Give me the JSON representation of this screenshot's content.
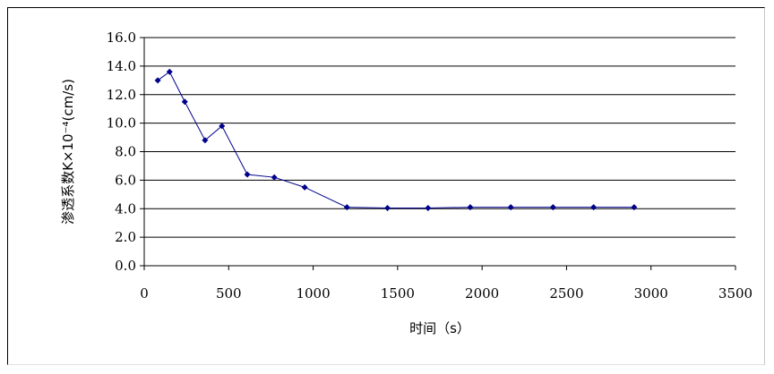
{
  "chart_data": {
    "type": "line",
    "title": "",
    "xlabel": "时间（s）",
    "ylabel": "渗透系数K×10⁻⁴(cm/s)",
    "xlim": [
      0,
      3500
    ],
    "ylim": [
      0,
      16
    ],
    "xticks": [
      0,
      500,
      1000,
      1500,
      2000,
      2500,
      3000,
      3500
    ],
    "yticks": [
      0,
      2,
      4,
      6,
      8,
      10,
      12,
      14,
      16
    ],
    "ytick_labels": [
      "0.0",
      "2.0",
      "4.0",
      "6.0",
      "8.0",
      "10.0",
      "12.0",
      "14.0",
      "16.0"
    ],
    "grid": "horizontal",
    "legend": "none",
    "series": [
      {
        "color": "#00008b",
        "points": [
          [
            80,
            13.0
          ],
          [
            150,
            13.6
          ],
          [
            240,
            11.5
          ],
          [
            360,
            8.8
          ],
          [
            460,
            9.8
          ],
          [
            610,
            6.4
          ],
          [
            770,
            6.2
          ],
          [
            950,
            5.5
          ],
          [
            1200,
            4.1
          ],
          [
            1440,
            4.05
          ],
          [
            1680,
            4.05
          ],
          [
            1930,
            4.1
          ],
          [
            2170,
            4.1
          ],
          [
            2420,
            4.1
          ],
          [
            2660,
            4.1
          ],
          [
            2900,
            4.1
          ]
        ]
      }
    ]
  }
}
